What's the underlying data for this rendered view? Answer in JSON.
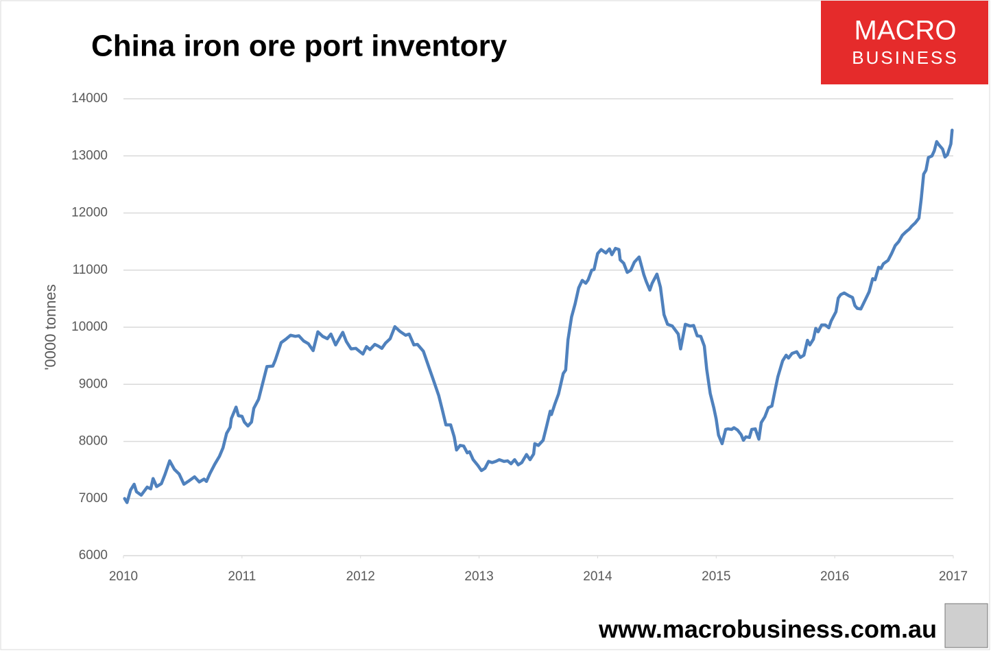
{
  "chart_data": {
    "type": "line",
    "title": "China iron ore port inventory",
    "y_label": "'0000 tonnes",
    "xlim": [
      2010,
      2017
    ],
    "xticks": [
      2010,
      2011,
      2012,
      2013,
      2014,
      2015,
      2016,
      2017
    ],
    "ylim": [
      6000,
      14000
    ],
    "yticks": [
      6000,
      7000,
      8000,
      9000,
      10000,
      11000,
      12000,
      13000,
      14000
    ],
    "grid": true,
    "x": [
      2010.01,
      2010.03,
      2010.06,
      2010.09,
      2010.11,
      2010.15,
      2010.2,
      2010.23,
      2010.25,
      2010.28,
      2010.32,
      2010.35,
      2010.39,
      2010.43,
      2010.47,
      2010.51,
      2010.56,
      2010.6,
      2010.64,
      2010.68,
      2010.7,
      2010.73,
      2010.77,
      2010.81,
      2010.84,
      2010.87,
      2010.9,
      2010.91,
      2010.95,
      2010.97,
      2011.0,
      2011.02,
      2011.05,
      2011.08,
      2011.1,
      2011.14,
      2011.17,
      2011.21,
      2011.26,
      2011.28,
      2011.33,
      2011.37,
      2011.41,
      2011.45,
      2011.48,
      2011.52,
      2011.56,
      2011.6,
      2011.64,
      2011.68,
      2011.72,
      2011.75,
      2011.79,
      2011.85,
      2011.88,
      2011.92,
      2011.96,
      2011.99,
      2012.02,
      2012.05,
      2012.08,
      2012.12,
      2012.15,
      2012.18,
      2012.21,
      2012.25,
      2012.29,
      2012.33,
      2012.38,
      2012.41,
      2012.45,
      2012.48,
      2012.53,
      2012.57,
      2012.61,
      2012.66,
      2012.69,
      2012.72,
      2012.76,
      2012.79,
      2012.81,
      2012.84,
      2012.87,
      2012.9,
      2012.92,
      2012.95,
      2012.99,
      2013.02,
      2013.05,
      2013.08,
      2013.11,
      2013.14,
      2013.17,
      2013.21,
      2013.24,
      2013.27,
      2013.3,
      2013.33,
      2013.36,
      2013.4,
      2013.43,
      2013.46,
      2013.47,
      2013.5,
      2013.54,
      2013.57,
      2013.6,
      2013.61,
      2013.64,
      2013.67,
      2013.71,
      2013.73,
      2013.75,
      2013.78,
      2013.81,
      2013.84,
      2013.87,
      2013.9,
      2013.92,
      2013.95,
      2013.97,
      2014.0,
      2014.03,
      2014.07,
      2014.1,
      2014.12,
      2014.15,
      2014.18,
      2014.19,
      2014.22,
      2014.25,
      2014.28,
      2014.31,
      2014.35,
      2014.39,
      2014.41,
      2014.44,
      2014.46,
      2014.5,
      2014.53,
      2014.56,
      2014.59,
      2014.63,
      2014.68,
      2014.7,
      2014.74,
      2014.78,
      2014.81,
      2014.84,
      2014.87,
      2014.9,
      2014.92,
      2014.95,
      2014.98,
      2015.0,
      2015.02,
      2015.05,
      2015.08,
      2015.1,
      2015.13,
      2015.15,
      2015.18,
      2015.21,
      2015.23,
      2015.25,
      2015.28,
      2015.3,
      2015.33,
      2015.36,
      2015.38,
      2015.41,
      2015.44,
      2015.47,
      2015.5,
      2015.52,
      2015.56,
      2015.59,
      2015.61,
      2015.64,
      2015.68,
      2015.71,
      2015.74,
      2015.77,
      2015.79,
      2015.82,
      2015.84,
      2015.86,
      2015.89,
      2015.92,
      2015.95,
      2015.97,
      2016.01,
      2016.03,
      2016.05,
      2016.08,
      2016.12,
      2016.15,
      2016.17,
      2016.19,
      2016.22,
      2016.26,
      2016.29,
      2016.32,
      2016.34,
      2016.37,
      2016.39,
      2016.41,
      2016.45,
      2016.48,
      2016.51,
      2016.54,
      2016.57,
      2016.6,
      2016.63,
      2016.65,
      2016.68,
      2016.71,
      2016.73,
      2016.75,
      2016.77,
      2016.79,
      2016.82,
      2016.84,
      2016.86,
      2016.88,
      2016.91,
      2016.93,
      2016.95,
      2016.98,
      2016.99
    ],
    "series": [
      {
        "name": "China iron ore port inventory",
        "color": "#4f81bd",
        "values": [
          7000,
          6930,
          7150,
          7250,
          7120,
          7060,
          7200,
          7170,
          7350,
          7210,
          7260,
          7420,
          7660,
          7510,
          7430,
          7250,
          7320,
          7380,
          7290,
          7340,
          7300,
          7440,
          7600,
          7740,
          7890,
          8140,
          8250,
          8400,
          8600,
          8450,
          8440,
          8340,
          8270,
          8340,
          8580,
          8740,
          8980,
          9310,
          9320,
          9420,
          9730,
          9790,
          9860,
          9840,
          9850,
          9760,
          9710,
          9590,
          9920,
          9840,
          9800,
          9880,
          9690,
          9910,
          9750,
          9620,
          9630,
          9580,
          9530,
          9660,
          9610,
          9700,
          9670,
          9630,
          9720,
          9800,
          10010,
          9930,
          9860,
          9880,
          9690,
          9700,
          9580,
          9340,
          9100,
          8800,
          8550,
          8290,
          8290,
          8080,
          7850,
          7930,
          7920,
          7800,
          7820,
          7680,
          7580,
          7490,
          7530,
          7650,
          7630,
          7650,
          7680,
          7650,
          7660,
          7610,
          7680,
          7590,
          7630,
          7770,
          7680,
          7780,
          7960,
          7930,
          8020,
          8270,
          8530,
          8470,
          8660,
          8830,
          9190,
          9250,
          9780,
          10180,
          10410,
          10690,
          10820,
          10770,
          10830,
          11000,
          11010,
          11290,
          11360,
          11300,
          11370,
          11270,
          11380,
          11360,
          11180,
          11120,
          10960,
          11000,
          11140,
          11230,
          10920,
          10800,
          10650,
          10770,
          10930,
          10700,
          10220,
          10050,
          10020,
          9880,
          9620,
          10050,
          10020,
          10030,
          9850,
          9840,
          9670,
          9260,
          8840,
          8590,
          8390,
          8110,
          7960,
          8210,
          8220,
          8210,
          8240,
          8200,
          8120,
          8020,
          8080,
          8070,
          8210,
          8220,
          8040,
          8330,
          8430,
          8590,
          8620,
          8930,
          9130,
          9410,
          9510,
          9460,
          9540,
          9570,
          9470,
          9510,
          9770,
          9690,
          9790,
          9980,
          9920,
          10040,
          10040,
          9990,
          10110,
          10270,
          10510,
          10570,
          10600,
          10550,
          10520,
          10380,
          10330,
          10320,
          10490,
          10620,
          10850,
          10830,
          11050,
          11030,
          11110,
          11170,
          11290,
          11430,
          11500,
          11610,
          11670,
          11720,
          11770,
          11830,
          11910,
          12250,
          12680,
          12750,
          12970,
          13000,
          13090,
          13250,
          13190,
          13120,
          12980,
          13020,
          13210,
          13450
        ]
      }
    ]
  },
  "branding": {
    "logo_top": "MACRO",
    "logo_bottom": "BUSINESS",
    "website": "www.macrobusiness.com.au"
  }
}
